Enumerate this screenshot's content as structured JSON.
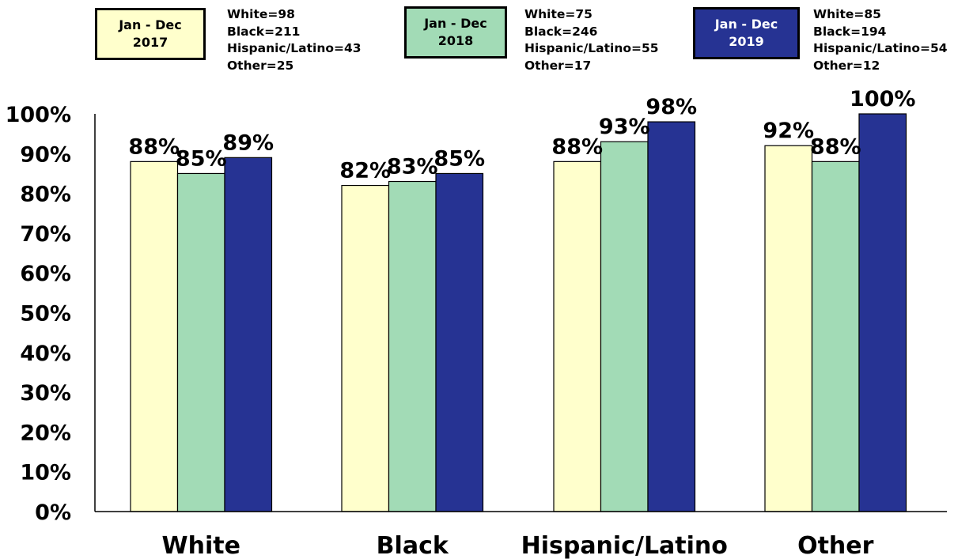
{
  "chart_data": {
    "type": "bar",
    "categories": [
      "White",
      "Black",
      "Hispanic/Latino",
      "Other"
    ],
    "series": [
      {
        "name": "Jan - Dec 2017",
        "name_lines": [
          "Jan - Dec",
          "2017"
        ],
        "color": "#FFFFCC",
        "text_color": "#000000",
        "values": [
          88,
          82,
          88,
          92
        ],
        "labels": [
          "88%",
          "82%",
          "88%",
          "92%"
        ],
        "counts": [
          "White=98",
          "Black=211",
          "Hispanic/Latino=43",
          "Other=25"
        ]
      },
      {
        "name": "Jan - Dec 2018",
        "name_lines": [
          "Jan - Dec",
          "2018"
        ],
        "color": "#A2DBB6",
        "text_color": "#000000",
        "values": [
          85,
          83,
          93,
          88
        ],
        "labels": [
          "85%",
          "83%",
          "93%",
          "88%"
        ],
        "counts": [
          "White=75",
          "Black=246",
          "Hispanic/Latino=55",
          "Other=17"
        ]
      },
      {
        "name": "Jan - Dec 2019",
        "name_lines": [
          "Jan - Dec",
          "2019"
        ],
        "color": "#263393",
        "text_color": "#FFFFFF",
        "values": [
          89,
          85,
          98,
          100
        ],
        "labels": [
          "89%",
          "85%",
          "98%",
          "100%"
        ],
        "counts": [
          "White=85",
          "Black=194",
          "Hispanic/Latino=54",
          "Other=12"
        ]
      }
    ],
    "y_ticks": [
      "0%",
      "10%",
      "20%",
      "30%",
      "40%",
      "50%",
      "60%",
      "70%",
      "80%",
      "90%",
      "100%"
    ],
    "ylim": [
      0,
      100
    ],
    "grid": false,
    "legend": "top",
    "title": "",
    "xlabel": "",
    "ylabel": ""
  }
}
